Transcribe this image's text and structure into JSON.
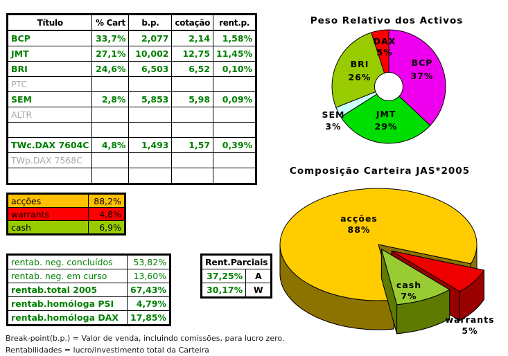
{
  "titles_table": {
    "headers": [
      "Título",
      "% Cart",
      "b.p.",
      "cotação",
      "rent.p."
    ],
    "rows": [
      {
        "label": "BCP",
        "pct_cart": "33,7%",
        "bp": "2,077",
        "cotacao": "2,14",
        "rent_p": "1,58%",
        "state": "active"
      },
      {
        "label": "JMT",
        "pct_cart": "27,1%",
        "bp": "10,002",
        "cotacao": "12,75",
        "rent_p": "11,45%",
        "state": "active"
      },
      {
        "label": "BRI",
        "pct_cart": "24,6%",
        "bp": "6,503",
        "cotacao": "6,52",
        "rent_p": "0,10%",
        "state": "active"
      },
      {
        "label": "PTC",
        "pct_cart": "",
        "bp": "",
        "cotacao": "",
        "rent_p": "",
        "state": "inactive"
      },
      {
        "label": "SEM",
        "pct_cart": "2,8%",
        "bp": "5,853",
        "cotacao": "5,98",
        "rent_p": "0,09%",
        "state": "active"
      },
      {
        "label": "ALTR",
        "pct_cart": "",
        "bp": "",
        "cotacao": "",
        "rent_p": "",
        "state": "inactive"
      },
      {
        "label": "",
        "pct_cart": "",
        "bp": "",
        "cotacao": "",
        "rent_p": "",
        "state": "empty"
      },
      {
        "label": "TWc.DAX 7604C",
        "pct_cart": "4,8%",
        "bp": "1,493",
        "cotacao": "1,57",
        "rent_p": "0,39%",
        "state": "active"
      },
      {
        "label": "TWp.DAX 7568C",
        "pct_cart": "",
        "bp": "",
        "cotacao": "",
        "rent_p": "",
        "state": "inactive"
      },
      {
        "label": "",
        "pct_cart": "",
        "bp": "",
        "cotacao": "",
        "rent_p": "",
        "state": "empty"
      }
    ]
  },
  "asset_class_table": {
    "rows": [
      {
        "label": "acções",
        "value": "88,2%",
        "color": "#FFC000"
      },
      {
        "label": "warrants",
        "value": "4,8%",
        "color": "#FF0000"
      },
      {
        "label": "cash",
        "value": "6,9%",
        "color": "#99CC00"
      }
    ]
  },
  "returns_table": {
    "rows": [
      {
        "label": "rentab. neg. concluídos",
        "value": "53,82%",
        "bold": false
      },
      {
        "label": "rentab. neg. em curso",
        "value": "13,60%",
        "bold": false
      },
      {
        "label": "rentab.total 2005",
        "value": "67,43%",
        "bold": true
      },
      {
        "label": "rentab.homóloga PSI",
        "value": "4,79%",
        "bold": true
      },
      {
        "label": "rentab.homóloga DAX",
        "value": "17,85%",
        "bold": true
      }
    ]
  },
  "partial_returns_table": {
    "title": "Rent.Parciais",
    "rows": [
      {
        "value": "37,25%",
        "code": "A"
      },
      {
        "value": "30,17%",
        "code": "W"
      }
    ]
  },
  "chart_data": [
    {
      "type": "pie",
      "variant": "donut",
      "title": "Peso Relativo dos Activos",
      "categories": [
        "BCP",
        "JMT",
        "SEM",
        "BRI",
        "DAX"
      ],
      "values": [
        37,
        29,
        3,
        26,
        5
      ],
      "labels": [
        "37%",
        "29%",
        "3%",
        "26%",
        "5%"
      ],
      "colors": [
        "#EE00EE",
        "#00DD00",
        "#CCFFFF",
        "#99CC00",
        "#FF0000"
      ],
      "legend_position": "labels-on-slices"
    },
    {
      "type": "pie",
      "variant": "3d-exploded",
      "title": "Composição Carteira JAS*2005",
      "categories": [
        "acções",
        "warrants",
        "cash"
      ],
      "values": [
        88,
        5,
        7
      ],
      "labels": [
        "88%",
        "5%",
        "7%"
      ],
      "colors": [
        "#FFCC00",
        "#EE0000",
        "#99CC33"
      ],
      "side_colors": [
        "#8C7300",
        "#990000",
        "#5E7A00"
      ],
      "legend_position": "labels-on-slices"
    }
  ],
  "footnotes": [
    "Break-point(b.p.) = Valor de venda, incluindo comissões, para lucro zero.",
    "Rentabilidades = lucro/investimento total da Carteira"
  ]
}
